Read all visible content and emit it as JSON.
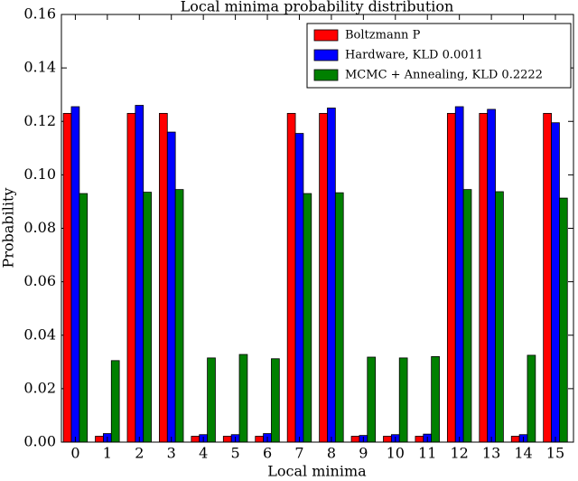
{
  "chart_data": {
    "type": "bar",
    "title": "Local minima probability distribution",
    "x_label": "Local minima",
    "y_label": "Probability",
    "categories": [
      "0",
      "1",
      "2",
      "3",
      "4",
      "5",
      "6",
      "7",
      "8",
      "9",
      "10",
      "11",
      "12",
      "13",
      "14",
      "15"
    ],
    "series": [
      {
        "name": "Boltzmann P",
        "color": "#ff0000",
        "values": [
          0.123,
          0.0022,
          0.123,
          0.123,
          0.0022,
          0.0022,
          0.0022,
          0.123,
          0.123,
          0.0022,
          0.0022,
          0.0022,
          0.123,
          0.123,
          0.0022,
          0.123
        ]
      },
      {
        "name": "Hardware, KLD 0.0011",
        "color": "#0000ff",
        "values": [
          0.1255,
          0.0032,
          0.126,
          0.116,
          0.0028,
          0.0028,
          0.0032,
          0.1155,
          0.125,
          0.0025,
          0.0028,
          0.003,
          0.1255,
          0.1245,
          0.0028,
          0.1195
        ]
      },
      {
        "name": "MCMC + Annealing, KLD 0.2222",
        "color": "#008000",
        "values": [
          0.093,
          0.0305,
          0.0935,
          0.0945,
          0.0315,
          0.0328,
          0.0312,
          0.093,
          0.0933,
          0.0318,
          0.0315,
          0.032,
          0.0945,
          0.0937,
          0.0325,
          0.0913
        ]
      }
    ],
    "ylim": [
      0,
      0.16
    ],
    "yticks": [
      {
        "value": 0,
        "label": "0.00"
      },
      0.02,
      0.04,
      0.06,
      0.08,
      {
        "value": 0.1,
        "label": "0.10"
      },
      0.12,
      0.14,
      0.16
    ],
    "legend": "upper right",
    "grid": false
  }
}
